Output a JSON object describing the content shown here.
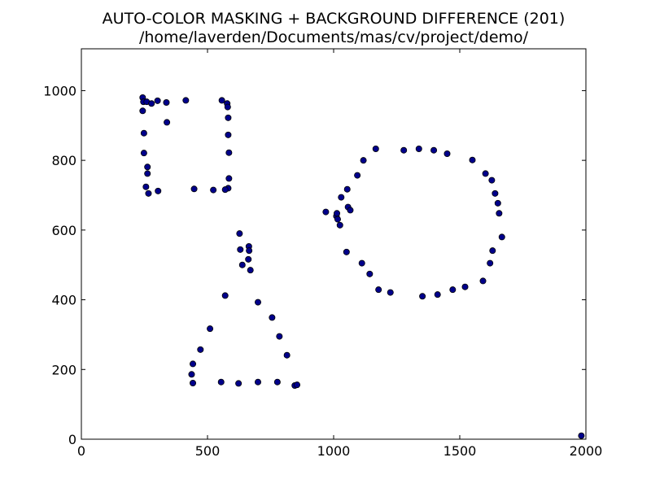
{
  "chart_data": {
    "type": "scatter",
    "title": "AUTO-COLOR MASKING + BACKGROUND DIFFERENCE (201)",
    "subtitle": "/home/laverden/Documents/mas/cv/project/demo/",
    "xlabel": "",
    "ylabel": "",
    "xlim": [
      0,
      2000
    ],
    "ylim": [
      0,
      1120
    ],
    "xticks": [
      0,
      500,
      1000,
      1500,
      2000
    ],
    "yticks": [
      0,
      200,
      400,
      600,
      800,
      1000
    ],
    "grid": false,
    "marker_color": "#00008b",
    "points": [
      [
        243,
        980
      ],
      [
        246,
        968
      ],
      [
        259,
        968
      ],
      [
        278,
        963
      ],
      [
        302,
        971
      ],
      [
        337,
        966
      ],
      [
        414,
        972
      ],
      [
        557,
        972
      ],
      [
        578,
        963
      ],
      [
        580,
        953
      ],
      [
        582,
        922
      ],
      [
        582,
        873
      ],
      [
        585,
        822
      ],
      [
        585,
        748
      ],
      [
        582,
        720
      ],
      [
        570,
        716
      ],
      [
        523,
        715
      ],
      [
        447,
        718
      ],
      [
        304,
        712
      ],
      [
        266,
        705
      ],
      [
        256,
        724
      ],
      [
        262,
        762
      ],
      [
        262,
        781
      ],
      [
        248,
        821
      ],
      [
        248,
        878
      ],
      [
        243,
        942
      ],
      [
        339,
        909
      ],
      [
        627,
        590
      ],
      [
        630,
        544
      ],
      [
        638,
        500
      ],
      [
        662,
        516
      ],
      [
        664,
        553
      ],
      [
        665,
        541
      ],
      [
        670,
        485
      ],
      [
        570,
        412
      ],
      [
        700,
        393
      ],
      [
        756,
        349
      ],
      [
        785,
        295
      ],
      [
        815,
        241
      ],
      [
        510,
        317
      ],
      [
        472,
        257
      ],
      [
        442,
        216
      ],
      [
        437,
        186
      ],
      [
        442,
        161
      ],
      [
        554,
        164
      ],
      [
        623,
        160
      ],
      [
        700,
        164
      ],
      [
        777,
        164
      ],
      [
        846,
        154
      ],
      [
        855,
        156
      ],
      [
        969,
        652
      ],
      [
        1011,
        640
      ],
      [
        1013,
        648
      ],
      [
        1016,
        631
      ],
      [
        1025,
        614
      ],
      [
        1030,
        694
      ],
      [
        1054,
        717
      ],
      [
        1057,
        666
      ],
      [
        1066,
        657
      ],
      [
        1051,
        537
      ],
      [
        1094,
        757
      ],
      [
        1118,
        800
      ],
      [
        1167,
        833
      ],
      [
        1278,
        829
      ],
      [
        1338,
        833
      ],
      [
        1397,
        829
      ],
      [
        1450,
        819
      ],
      [
        1550,
        801
      ],
      [
        1602,
        762
      ],
      [
        1627,
        743
      ],
      [
        1640,
        705
      ],
      [
        1651,
        677
      ],
      [
        1656,
        648
      ],
      [
        1667,
        580
      ],
      [
        1630,
        541
      ],
      [
        1620,
        505
      ],
      [
        1592,
        454
      ],
      [
        1521,
        437
      ],
      [
        1472,
        429
      ],
      [
        1412,
        415
      ],
      [
        1352,
        410
      ],
      [
        1225,
        421
      ],
      [
        1178,
        429
      ],
      [
        1143,
        474
      ],
      [
        1112,
        505
      ],
      [
        1982,
        10
      ]
    ]
  }
}
